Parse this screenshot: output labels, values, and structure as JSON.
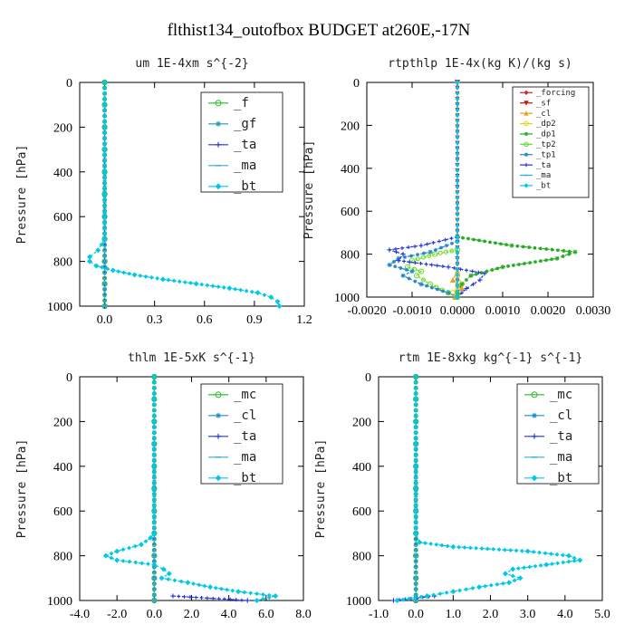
{
  "page_title": "flthist134_outofbox  BUDGET at260E,-17N",
  "chart_data": [
    {
      "type": "line",
      "title": "um   1E-4xm s^{-2}",
      "ylabel": "Pressure [hPa]",
      "xlim": [
        -0.15,
        1.2
      ],
      "ylim": [
        0,
        1000
      ],
      "y_reversed": true,
      "xticks": [
        "0.0",
        "0.3",
        "0.6",
        "0.9",
        "1.2"
      ],
      "xtick_values": [
        0,
        0.3,
        0.6,
        0.9,
        1.2
      ],
      "yticks": [
        "0",
        "200",
        "400",
        "600",
        "800",
        "1000"
      ],
      "ytick_values": [
        0,
        200,
        400,
        600,
        800,
        1000
      ],
      "legend_position": "top-right",
      "series": [
        {
          "name": "_f",
          "color": "#22bb22",
          "marker": "circle",
          "p": [
            0,
            100,
            200,
            300,
            400,
            500,
            600,
            700,
            800,
            900,
            1000
          ],
          "x": [
            0,
            0,
            0,
            0,
            0,
            0,
            0,
            0,
            0,
            0,
            0
          ]
        },
        {
          "name": "_gf",
          "color": "#2299aa",
          "marker": "star",
          "p": [
            0,
            100,
            200,
            300,
            400,
            500,
            600,
            700,
            800,
            900,
            1000
          ],
          "x": [
            0,
            0,
            0,
            0,
            0,
            0,
            0,
            0,
            0,
            0,
            0
          ]
        },
        {
          "name": "_ta",
          "color": "#2233dd",
          "marker": "plus",
          "p": [
            0,
            1000
          ],
          "x": [
            0,
            0
          ]
        },
        {
          "name": "_ma",
          "color": "#33aadd",
          "marker": "dash",
          "p": [
            0,
            1000
          ],
          "x": [
            0,
            0
          ]
        },
        {
          "name": "_bt",
          "color": "#00c8e8",
          "marker": "diamond",
          "p": [
            0,
            100,
            200,
            300,
            400,
            500,
            600,
            700,
            750,
            780,
            800,
            820,
            840,
            860,
            880,
            900,
            920,
            940,
            960,
            980,
            1000
          ],
          "x": [
            0,
            0,
            0,
            0,
            0,
            0,
            0,
            0,
            -0.04,
            -0.09,
            -0.09,
            -0.05,
            0.05,
            0.18,
            0.35,
            0.55,
            0.75,
            0.92,
            1.0,
            1.04,
            1.05
          ]
        }
      ]
    },
    {
      "type": "line",
      "title": "rtpthlp   1E-4x(kg K)/(kg s)",
      "ylabel": "Pressure [hPa]",
      "xlim": [
        -0.002,
        0.003
      ],
      "ylim": [
        0,
        1000
      ],
      "y_reversed": true,
      "xticks": [
        "-0.0020",
        "-0.0010",
        "0.0000",
        "0.0010",
        "0.0020",
        "0.0030"
      ],
      "xtick_values": [
        -0.002,
        -0.001,
        0,
        0.001,
        0.002,
        0.003
      ],
      "yticks": [
        "0",
        "200",
        "400",
        "600",
        "800",
        "1000"
      ],
      "ytick_values": [
        0,
        200,
        400,
        600,
        800,
        1000
      ],
      "legend_position": "top-right",
      "series": [
        {
          "name": "_forcing",
          "color": "#dd2222",
          "marker": "diamond",
          "p": [
            0,
            1000
          ],
          "x": [
            0,
            0
          ]
        },
        {
          "name": "_sf",
          "color": "#cc1111",
          "marker": "triangle-down",
          "p": [
            0,
            1000
          ],
          "x": [
            0,
            0
          ]
        },
        {
          "name": "_cl",
          "color": "#e8a020",
          "marker": "triangle",
          "p": [
            880,
            920,
            960,
            1000
          ],
          "x": [
            0,
            -0.0001,
            0.0001,
            -5e-05
          ]
        },
        {
          "name": "_dp2",
          "color": "#e8d020",
          "marker": "circle",
          "p": [
            900,
            940,
            980,
            1000
          ],
          "x": [
            0,
            0.0001,
            -0.0001,
            0
          ]
        },
        {
          "name": "_dp1",
          "color": "#22aa22",
          "marker": "star",
          "p": [
            720,
            760,
            790,
            820,
            860,
            900,
            940,
            980,
            1000
          ],
          "x": [
            0,
            0.0012,
            0.0026,
            0.0022,
            0.001,
            0.0003,
            0.0001,
            0,
            0
          ]
        },
        {
          "name": "_tp2",
          "color": "#66dd22",
          "marker": "circle",
          "p": [
            780,
            800,
            830,
            860,
            880,
            900,
            940,
            980,
            1000
          ],
          "x": [
            0,
            -0.0005,
            -0.001,
            -0.0011,
            -0.0008,
            -0.0009,
            -0.0006,
            -0.0002,
            0
          ]
        },
        {
          "name": "_tp1",
          "color": "#2288cc",
          "marker": "star",
          "p": [
            740,
            790,
            820,
            850,
            880,
            900,
            940,
            980,
            1000
          ],
          "x": [
            0,
            -0.0006,
            -0.0013,
            -0.0015,
            -0.001,
            -0.0012,
            -0.0008,
            -0.0002,
            0
          ]
        },
        {
          "name": "_ta",
          "color": "#2233dd",
          "marker": "plus",
          "p": [
            720,
            760,
            780,
            800,
            830,
            860,
            890,
            920,
            960,
            1000
          ],
          "x": [
            0,
            -0.0008,
            -0.0015,
            -0.0012,
            -0.0013,
            -0.0002,
            0.0006,
            0.0005,
            0.0002,
            0
          ]
        },
        {
          "name": "_ma",
          "color": "#33aadd",
          "marker": "dash",
          "p": [
            0,
            1000
          ],
          "x": [
            0,
            0
          ]
        },
        {
          "name": "_bt",
          "color": "#00c8e8",
          "marker": "diamond",
          "p": [
            0,
            1000
          ],
          "x": [
            0,
            0
          ]
        }
      ]
    },
    {
      "type": "line",
      "title": "thlm   1E-5xK s^{-1}",
      "ylabel": "Pressure [hPa]",
      "xlim": [
        -4.0,
        8.0
      ],
      "ylim": [
        0,
        1000
      ],
      "y_reversed": true,
      "xticks": [
        "-4.0",
        "-2.0",
        "0.0",
        "2.0",
        "4.0",
        "6.0",
        "8.0"
      ],
      "xtick_values": [
        -4,
        -2,
        0,
        2,
        4,
        6,
        8
      ],
      "yticks": [
        "0",
        "200",
        "400",
        "600",
        "800",
        "1000"
      ],
      "ytick_values": [
        0,
        200,
        400,
        600,
        800,
        1000
      ],
      "legend_position": "top-right",
      "series": [
        {
          "name": "_mc",
          "color": "#22bb22",
          "marker": "circle",
          "p": [
            0,
            100,
            200,
            300,
            400,
            500,
            600,
            700,
            800,
            900,
            1000
          ],
          "x": [
            0,
            0,
            0,
            0,
            0,
            0,
            0,
            0,
            0,
            0,
            0
          ]
        },
        {
          "name": "_cl",
          "color": "#2288cc",
          "marker": "star",
          "p": [
            0,
            100,
            200,
            300,
            400,
            500,
            600,
            700,
            800,
            900,
            1000
          ],
          "x": [
            0,
            0,
            0,
            0,
            0,
            0,
            0,
            0,
            0,
            0,
            0
          ]
        },
        {
          "name": "_ta",
          "color": "#2233dd",
          "marker": "plus",
          "p": [
            980,
            1000
          ],
          "x": [
            1.0,
            5.0
          ]
        },
        {
          "name": "_ma",
          "color": "#33aadd",
          "marker": "dash",
          "p": [
            0,
            1000
          ],
          "x": [
            0,
            0
          ]
        },
        {
          "name": "_bt",
          "color": "#00c8e8",
          "marker": "diamond",
          "p": [
            0,
            100,
            200,
            300,
            400,
            500,
            600,
            700,
            720,
            750,
            780,
            800,
            820,
            840,
            860,
            880,
            900,
            920,
            940,
            960,
            980,
            1000
          ],
          "x": [
            0,
            0,
            0,
            0,
            0,
            0,
            0,
            0,
            -0.2,
            -0.7,
            -2.0,
            -2.6,
            -2.0,
            0,
            0.5,
            0.8,
            0.4,
            1.8,
            3.0,
            4.5,
            6.5,
            5.5
          ]
        }
      ]
    },
    {
      "type": "line",
      "title": "rtm   1E-8xkg kg^{-1} s^{-1}",
      "ylabel": "Pressure [hPa]",
      "xlim": [
        -1.0,
        5.0
      ],
      "ylim": [
        0,
        1000
      ],
      "y_reversed": true,
      "xticks": [
        "-1.0",
        "0.0",
        "1.0",
        "2.0",
        "3.0",
        "4.0",
        "5.0"
      ],
      "xtick_values": [
        -1,
        0,
        1,
        2,
        3,
        4,
        5
      ],
      "yticks": [
        "0",
        "200",
        "400",
        "600",
        "800",
        "1000"
      ],
      "ytick_values": [
        0,
        200,
        400,
        600,
        800,
        1000
      ],
      "legend_position": "top-right",
      "series": [
        {
          "name": "_mc",
          "color": "#22bb22",
          "marker": "circle",
          "p": [
            0,
            100,
            200,
            300,
            400,
            500,
            600,
            700,
            800,
            900,
            1000
          ],
          "x": [
            0,
            0,
            0,
            0,
            0,
            0,
            0,
            0,
            0,
            0,
            0
          ]
        },
        {
          "name": "_cl",
          "color": "#2288cc",
          "marker": "star",
          "p": [
            0,
            100,
            200,
            300,
            400,
            500,
            600,
            700,
            800,
            900,
            1000
          ],
          "x": [
            0,
            0,
            0,
            0,
            0,
            0,
            0,
            0,
            0,
            0,
            0
          ]
        },
        {
          "name": "_ta",
          "color": "#2233dd",
          "marker": "plus",
          "p": [
            980,
            1000
          ],
          "x": [
            0.5,
            -0.6
          ]
        },
        {
          "name": "_ma",
          "color": "#33aadd",
          "marker": "dash",
          "p": [
            0,
            1000
          ],
          "x": [
            0,
            0
          ]
        },
        {
          "name": "_bt",
          "color": "#00c8e8",
          "marker": "diamond",
          "p": [
            0,
            100,
            200,
            300,
            400,
            500,
            600,
            700,
            740,
            760,
            780,
            800,
            820,
            840,
            860,
            880,
            900,
            920,
            940,
            960,
            980,
            1000
          ],
          "x": [
            0,
            0,
            0,
            0,
            0,
            0,
            0,
            0,
            0.1,
            1.0,
            3.0,
            4.1,
            4.4,
            3.5,
            2.6,
            2.4,
            2.8,
            2.5,
            1.7,
            1.0,
            0.3,
            -0.5
          ]
        }
      ]
    }
  ]
}
